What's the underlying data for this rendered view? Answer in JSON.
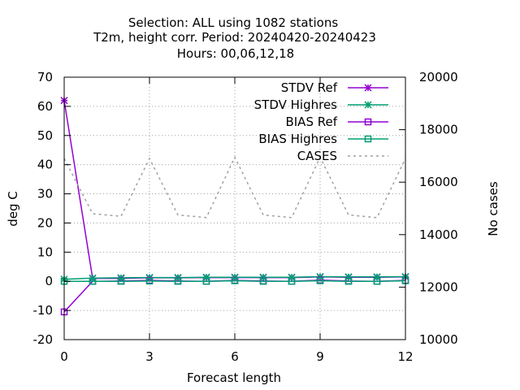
{
  "chart_data": {
    "type": "line",
    "title_lines": [
      "Selection: ALL using  1082 stations",
      "T2m, height corr.    Period: 20240420-20240423",
      "Hours:  00,06,12,18"
    ],
    "xlabel": "Forecast length",
    "ylabel": "deg C",
    "y2label": "No cases",
    "xlim": [
      0,
      12
    ],
    "ylim": [
      -20,
      70
    ],
    "y2lim": [
      10000,
      20000
    ],
    "x_ticks": [
      0,
      3,
      6,
      9,
      12
    ],
    "y_ticks": [
      -20,
      -10,
      0,
      10,
      20,
      30,
      40,
      50,
      60,
      70
    ],
    "y2_ticks": [
      10000,
      12000,
      14000,
      16000,
      18000,
      20000
    ],
    "grid": true,
    "legend_position": "top-right",
    "x": [
      0,
      1,
      2,
      3,
      4,
      5,
      6,
      7,
      8,
      9,
      10,
      11,
      12
    ],
    "series": [
      {
        "name": "STDV Ref",
        "axis": "y1",
        "color": "#9400d3",
        "marker": "star",
        "dash": "solid",
        "values": [
          62,
          1.0,
          1.0,
          1.2,
          1.2,
          1.3,
          1.3,
          1.3,
          1.3,
          1.5,
          1.4,
          1.4,
          1.5
        ]
      },
      {
        "name": "STDV Highres",
        "axis": "y1",
        "color": "#009e73",
        "marker": "star",
        "dash": "solid",
        "values": [
          0.7,
          1.1,
          1.2,
          1.3,
          1.3,
          1.4,
          1.4,
          1.4,
          1.4,
          1.6,
          1.5,
          1.5,
          1.6
        ]
      },
      {
        "name": "BIAS Ref",
        "axis": "y1",
        "color": "#9400d3",
        "marker": "square",
        "dash": "solid",
        "values": [
          -10.5,
          0.0,
          0.1,
          0.3,
          0.1,
          0.0,
          0.3,
          0.1,
          0.0,
          0.4,
          0.1,
          0.0,
          0.3
        ]
      },
      {
        "name": "BIAS Highres",
        "axis": "y1",
        "color": "#009e73",
        "marker": "square",
        "dash": "solid",
        "values": [
          0.0,
          0.0,
          0.0,
          0.1,
          0.0,
          0.0,
          0.2,
          0.0,
          0.0,
          0.2,
          0.0,
          0.0,
          0.2
        ]
      },
      {
        "name": "CASES",
        "axis": "y2",
        "color": "#a0a0a0",
        "marker": "none",
        "dash": "dotted",
        "values": [
          16900,
          14800,
          14700,
          16900,
          14750,
          14650,
          16950,
          14750,
          14650,
          16950,
          14750,
          14650,
          16900
        ]
      }
    ]
  }
}
